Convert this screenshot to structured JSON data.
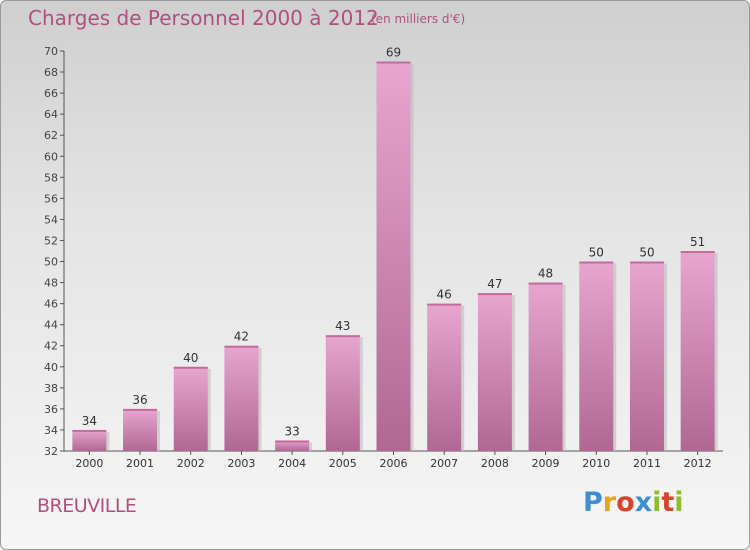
{
  "header": {
    "title": "Charges de Personnel 2000 à 2012",
    "subtitle": "(en milliers d'€)"
  },
  "footer": {
    "commune": "BREUVILLE",
    "logo_text": "Proxiti"
  },
  "colors": {
    "title": "#b0507f",
    "bar_top": "#e7a6cf",
    "bar_bottom": "#b06893",
    "logo": [
      "#3f8fd0",
      "#e9a31a",
      "#d6432c",
      "#3f8fd0",
      "#8fbd2c",
      "#d6432c",
      "#8fbd2c"
    ]
  },
  "chart_data": {
    "type": "bar",
    "categories": [
      "2000",
      "2001",
      "2002",
      "2003",
      "2004",
      "2005",
      "2006",
      "2007",
      "2008",
      "2009",
      "2010",
      "2011",
      "2012"
    ],
    "values": [
      34,
      36,
      40,
      42,
      33,
      43,
      69,
      46,
      47,
      48,
      50,
      50,
      51
    ],
    "title": "Charges de Personnel 2000 à 2012",
    "subtitle": "(en milliers d'€)",
    "ylim": [
      32,
      70
    ],
    "yticks": [
      32,
      34,
      36,
      38,
      40,
      42,
      44,
      46,
      48,
      50,
      52,
      54,
      56,
      58,
      60,
      62,
      64,
      66,
      68,
      70
    ],
    "grid": false,
    "data_labels": true
  }
}
